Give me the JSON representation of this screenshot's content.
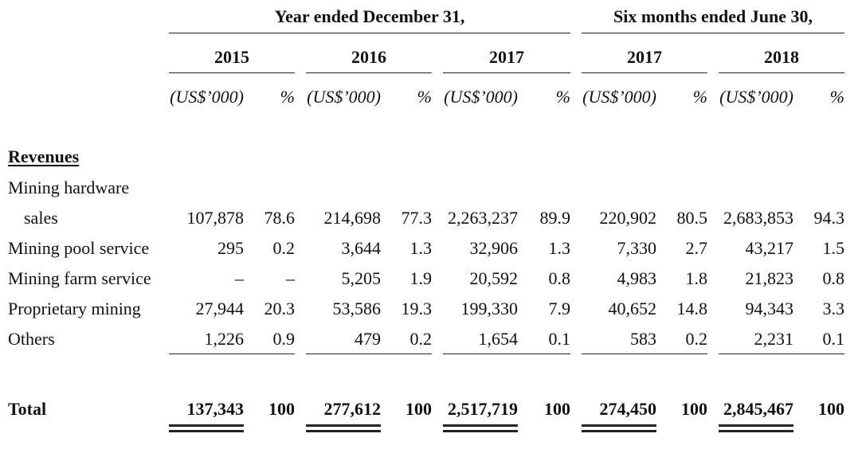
{
  "header": {
    "group_year": "Year ended December 31,",
    "group_six": "Six months ended June 30,",
    "years": [
      "2015",
      "2016",
      "2017",
      "2017",
      "2018"
    ],
    "unit_label": "(US$’000)",
    "pct_label": "%"
  },
  "section_label": "Revenues",
  "rows": [
    {
      "label_line1": "Mining hardware",
      "label_line2": "sales",
      "cells": [
        "107,878",
        "78.6",
        "214,698",
        "77.3",
        "2,263,237",
        "89.9",
        "220,902",
        "80.5",
        "2,683,853",
        "94.3"
      ]
    },
    {
      "label": "Mining pool service",
      "cells": [
        "295",
        "0.2",
        "3,644",
        "1.3",
        "32,906",
        "1.3",
        "7,330",
        "2.7",
        "43,217",
        "1.5"
      ]
    },
    {
      "label": "Mining farm service",
      "cells": [
        "–",
        "–",
        "5,205",
        "1.9",
        "20,592",
        "0.8",
        "4,983",
        "1.8",
        "21,823",
        "0.8"
      ]
    },
    {
      "label": "Proprietary mining",
      "cells": [
        "27,944",
        "20.3",
        "53,586",
        "19.3",
        "199,330",
        "7.9",
        "40,652",
        "14.8",
        "94,343",
        "3.3"
      ]
    },
    {
      "label": "Others",
      "cells": [
        "1,226",
        "0.9",
        "479",
        "0.2",
        "1,654",
        "0.1",
        "583",
        "0.2",
        "2,231",
        "0.1"
      ]
    }
  ],
  "total": {
    "label": "Total",
    "cells": [
      "137,343",
      "100",
      "277,612",
      "100",
      "2,517,719",
      "100",
      "274,450",
      "100",
      "2,845,467",
      "100"
    ]
  }
}
